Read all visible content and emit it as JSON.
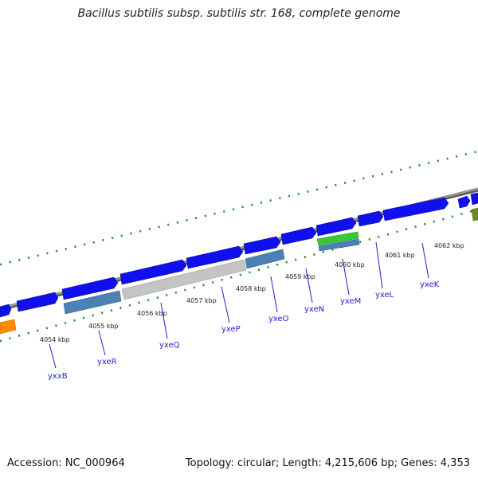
{
  "title": "Bacillus subtilis subsp. subtilis str. 168, complete genome",
  "footer": {
    "accession": "Accession: NC_000964",
    "summary": "Topology: circular; Length: 4,215,606 bp; Genes: 4,353"
  },
  "tick_labels": [
    "4054 kbp",
    "4055 kbp",
    "4056 kbp",
    "4057 kbp",
    "4058 kbp",
    "4059 kbp",
    "4060 kbp",
    "4061 kbp",
    "4062 kbp"
  ],
  "gene_labels": [
    "yxxB",
    "yxeR",
    "yxeQ",
    "yxeP",
    "yxeO",
    "yxeN",
    "yxeM",
    "yxeL",
    "yxeK"
  ],
  "colors": {
    "cds": "#1010ee",
    "backbone": "#808080",
    "ticks": "#1a8a1a",
    "steelblue": "#4a82b5",
    "gray_feature": "#c4c4c4",
    "green_feature": "#35c935",
    "orange_feature": "#ff8c00",
    "olive_feature": "#6b8e23",
    "label": "#1f1fd1"
  }
}
